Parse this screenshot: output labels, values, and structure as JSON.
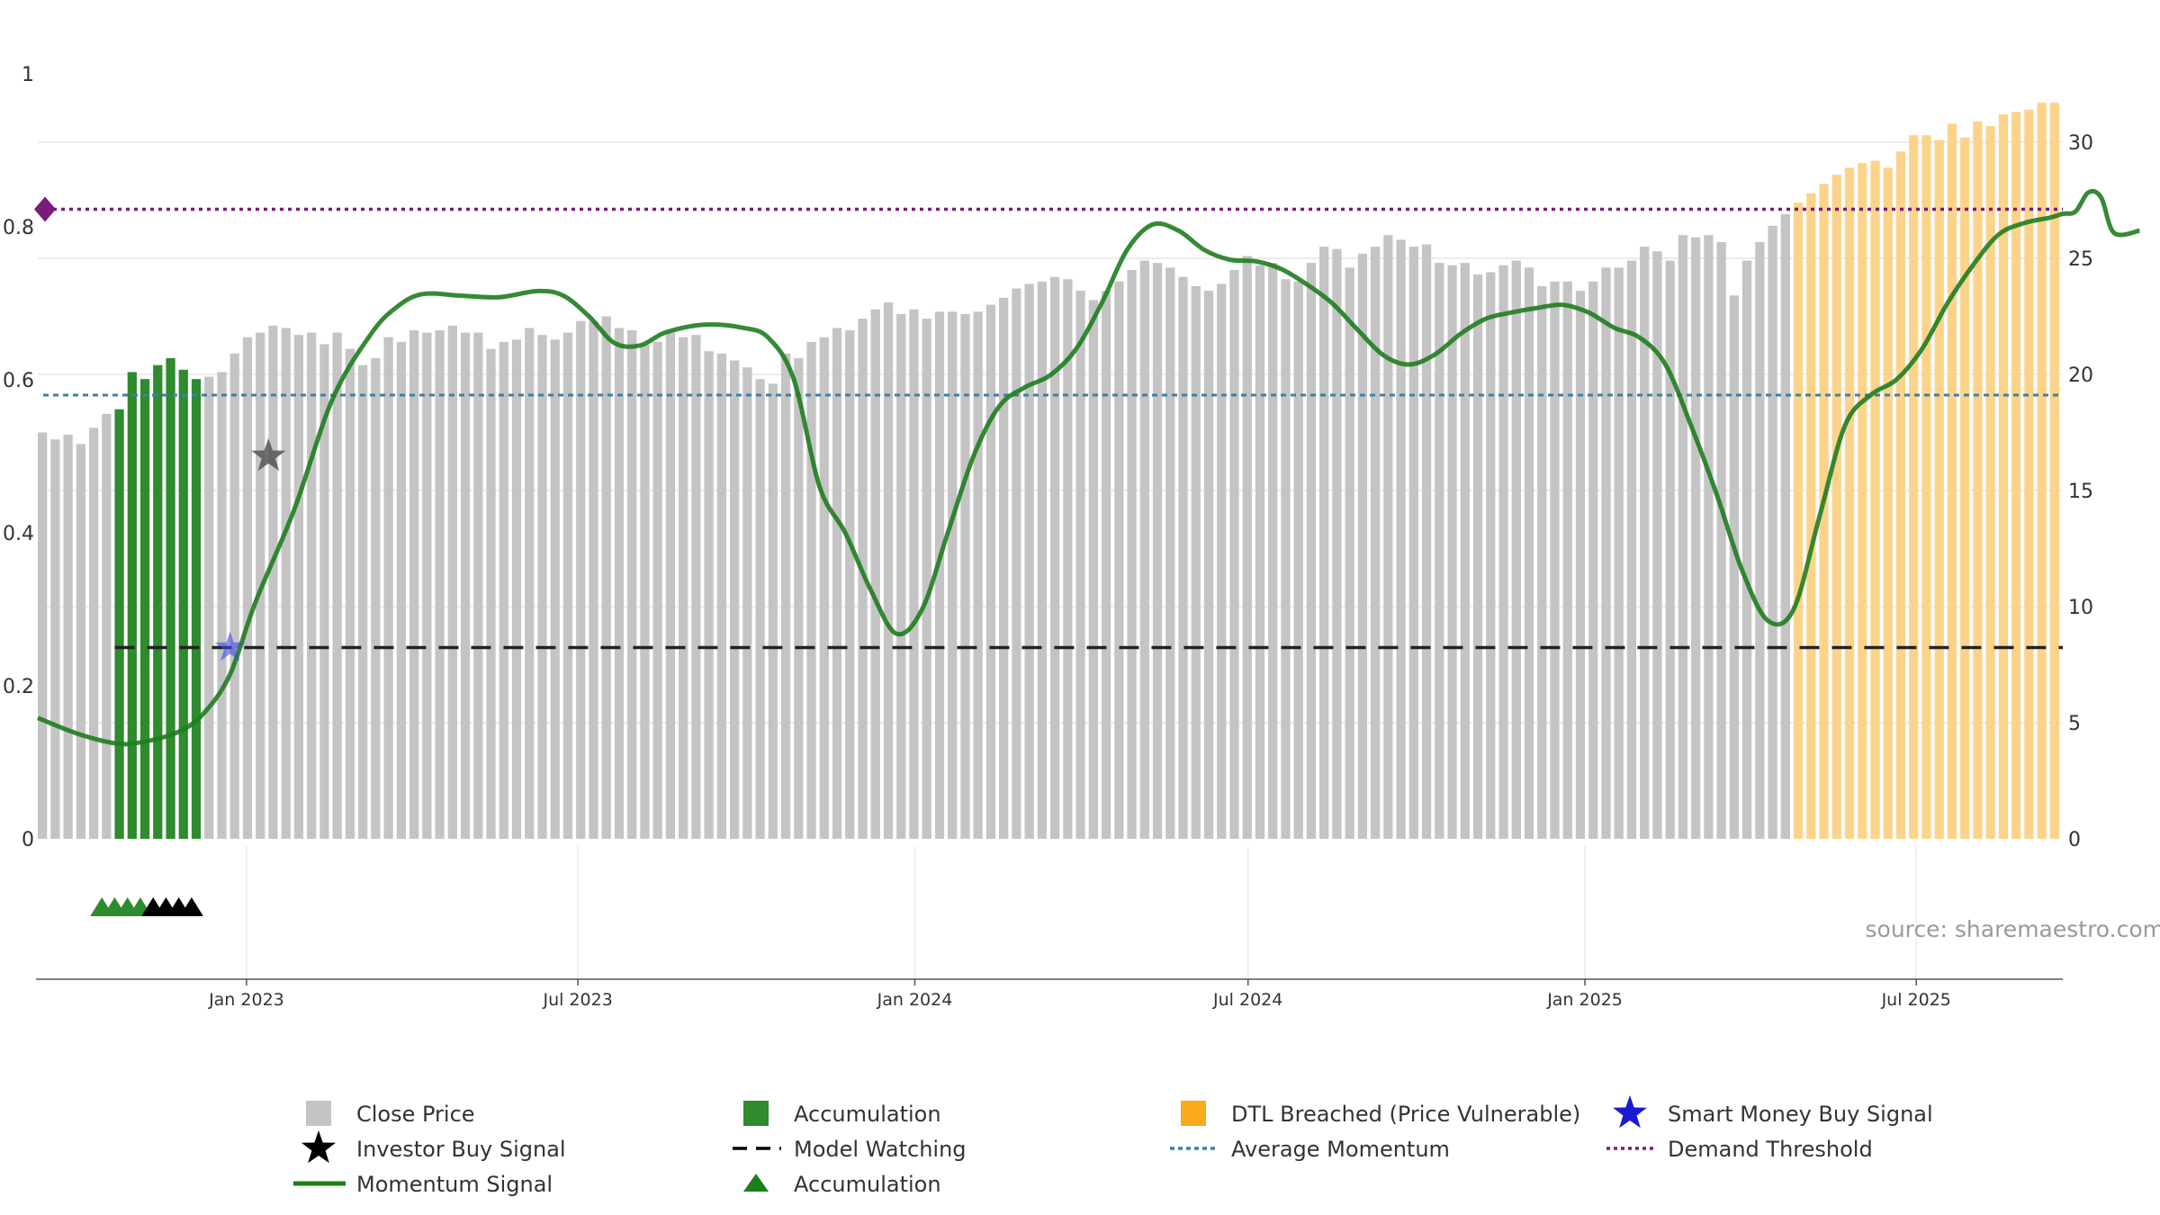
{
  "chart_data": {
    "type": "bar",
    "title": "",
    "colors": {
      "close_price": "#c4c4c4",
      "accumulation": "#2e8b2e",
      "dtl_breached": "#fcd38b",
      "momentum": "#1f7d1f",
      "average_momentum": "#3f7fa6",
      "demand_threshold": "#7a1a7a",
      "model_watching": "#222222",
      "investor_signal": "#555555",
      "smart_money_signal": "#3b4be0"
    },
    "left_axis": {
      "range": [
        0,
        1
      ],
      "ticks": [
        0,
        0.2,
        0.4,
        0.6,
        0.8,
        1
      ],
      "tick_labels": [
        "0",
        "0.2",
        "0.4",
        "0.6",
        "0.8",
        "1"
      ]
    },
    "right_axis": {
      "range": [
        0,
        32.9
      ],
      "ticks": [
        0,
        5,
        10,
        15,
        20,
        25,
        30
      ],
      "tick_labels": [
        "0",
        "5",
        "10",
        "15",
        "20",
        "25",
        "30"
      ]
    },
    "x_axis": {
      "start": "2022-09-09",
      "end": "2025-09-19",
      "ticks": [
        "2023-01-01",
        "2023-07-01",
        "2024-01-01",
        "2024-07-01",
        "2025-01-01",
        "2025-07-01"
      ],
      "tick_labels": [
        "Jan 2023",
        "Jul 2023",
        "Jan 2024",
        "Jul 2024",
        "Jan 2025",
        "Jul 2025"
      ]
    },
    "bars": {
      "week_start": "2022-09-09",
      "interval_days": 7,
      "close_price": [
        17.5,
        17.2,
        17.4,
        17.0,
        17.7,
        18.3,
        18.5,
        20.1,
        19.8,
        20.4,
        20.7,
        20.2,
        19.8,
        19.9,
        20.1,
        20.9,
        21.6,
        21.8,
        22.1,
        22.0,
        21.7,
        21.8,
        21.3,
        21.8,
        21.1,
        20.4,
        20.7,
        21.6,
        21.4,
        21.9,
        21.8,
        21.9,
        22.1,
        21.8,
        21.8,
        21.1,
        21.4,
        21.5,
        22.0,
        21.7,
        21.5,
        21.8,
        22.3,
        22.3,
        22.5,
        22.0,
        21.9,
        21.3,
        21.4,
        21.8,
        21.6,
        21.7,
        21.0,
        20.9,
        20.6,
        20.3,
        19.8,
        19.6,
        20.9,
        20.7,
        21.4,
        21.6,
        22.0,
        21.9,
        22.4,
        22.8,
        23.1,
        22.6,
        22.8,
        22.4,
        22.7,
        22.7,
        22.6,
        22.7,
        23.0,
        23.3,
        23.7,
        23.9,
        24.0,
        24.2,
        24.1,
        23.6,
        23.2,
        23.6,
        24.0,
        24.5,
        24.9,
        24.8,
        24.6,
        24.2,
        23.8,
        23.6,
        23.9,
        24.5,
        25.1,
        24.7,
        24.8,
        24.1,
        24.0,
        24.8,
        25.5,
        25.4,
        24.6,
        25.2,
        25.5,
        26.0,
        25.8,
        25.5,
        25.6,
        24.8,
        24.7,
        24.8,
        24.3,
        24.4,
        24.7,
        24.9,
        24.6,
        23.8,
        24.0,
        24.0,
        23.6,
        24.0,
        24.6,
        24.6,
        24.9,
        25.5,
        25.3,
        24.9,
        26.0,
        25.9,
        26.0,
        25.7,
        23.4,
        24.9,
        25.7,
        26.4,
        26.9
      ],
      "accumulation_indices": [
        6,
        7,
        8,
        9,
        10,
        11,
        12
      ],
      "dtl_start_index": 137,
      "dtl_prices": [
        27.4,
        27.8,
        28.2,
        28.6,
        28.9,
        29.1,
        29.2,
        28.9,
        29.6,
        30.3,
        30.3,
        30.1,
        30.8,
        30.2,
        30.9,
        30.7,
        31.2,
        31.3,
        31.4,
        31.7,
        31.7
      ]
    },
    "series": [
      {
        "name": "Momentum Signal",
        "axis": "left",
        "points": [
          [
            "2022-09-09",
            0.158
          ],
          [
            "2022-09-30",
            0.138
          ],
          [
            "2022-10-21",
            0.125
          ],
          [
            "2022-11-04",
            0.126
          ],
          [
            "2022-11-25",
            0.14
          ],
          [
            "2022-12-09",
            0.165
          ],
          [
            "2022-12-23",
            0.215
          ],
          [
            "2023-01-06",
            0.31
          ],
          [
            "2023-01-27",
            0.43
          ],
          [
            "2023-02-17",
            0.575
          ],
          [
            "2023-03-10",
            0.66
          ],
          [
            "2023-03-24",
            0.695
          ],
          [
            "2023-04-07",
            0.712
          ],
          [
            "2023-04-28",
            0.71
          ],
          [
            "2023-05-19",
            0.708
          ],
          [
            "2023-06-09",
            0.716
          ],
          [
            "2023-06-23",
            0.71
          ],
          [
            "2023-07-07",
            0.683
          ],
          [
            "2023-07-21",
            0.648
          ],
          [
            "2023-08-04",
            0.645
          ],
          [
            "2023-08-18",
            0.662
          ],
          [
            "2023-09-08",
            0.672
          ],
          [
            "2023-09-29",
            0.668
          ],
          [
            "2023-10-13",
            0.655
          ],
          [
            "2023-10-27",
            0.6
          ],
          [
            "2023-11-10",
            0.46
          ],
          [
            "2023-11-24",
            0.4
          ],
          [
            "2023-12-08",
            0.325
          ],
          [
            "2023-12-22",
            0.268
          ],
          [
            "2024-01-05",
            0.3
          ],
          [
            "2024-01-19",
            0.4
          ],
          [
            "2024-02-02",
            0.5
          ],
          [
            "2024-02-16",
            0.565
          ],
          [
            "2024-03-01",
            0.59
          ],
          [
            "2024-03-15",
            0.606
          ],
          [
            "2024-03-29",
            0.64
          ],
          [
            "2024-04-12",
            0.7
          ],
          [
            "2024-04-26",
            0.77
          ],
          [
            "2024-05-10",
            0.803
          ],
          [
            "2024-05-24",
            0.795
          ],
          [
            "2024-06-07",
            0.77
          ],
          [
            "2024-06-21",
            0.757
          ],
          [
            "2024-07-05",
            0.755
          ],
          [
            "2024-07-19",
            0.745
          ],
          [
            "2024-08-02",
            0.725
          ],
          [
            "2024-08-16",
            0.7
          ],
          [
            "2024-08-30",
            0.665
          ],
          [
            "2024-09-13",
            0.632
          ],
          [
            "2024-09-27",
            0.62
          ],
          [
            "2024-10-11",
            0.633
          ],
          [
            "2024-10-25",
            0.66
          ],
          [
            "2024-11-08",
            0.68
          ],
          [
            "2024-11-22",
            0.688
          ],
          [
            "2024-12-06",
            0.694
          ],
          [
            "2024-12-20",
            0.698
          ],
          [
            "2025-01-03",
            0.688
          ],
          [
            "2025-01-17",
            0.668
          ],
          [
            "2025-01-31",
            0.655
          ],
          [
            "2025-02-14",
            0.62
          ],
          [
            "2025-02-28",
            0.54
          ],
          [
            "2025-03-14",
            0.45
          ],
          [
            "2025-03-28",
            0.35
          ],
          [
            "2025-04-11",
            0.285
          ],
          [
            "2025-04-25",
            0.3
          ],
          [
            "2025-05-09",
            0.42
          ],
          [
            "2025-05-23",
            0.54
          ],
          [
            "2025-06-06",
            0.58
          ],
          [
            "2025-06-20",
            0.6
          ],
          [
            "2025-07-04",
            0.64
          ],
          [
            "2025-07-18",
            0.7
          ],
          [
            "2025-08-01",
            0.75
          ],
          [
            "2025-08-15",
            0.79
          ],
          [
            "2025-08-29",
            0.805
          ],
          [
            "2025-09-12",
            0.812
          ],
          [
            "2025-09-19",
            0.817
          ],
          [
            "2025-09-26",
            0.82
          ],
          [
            "2025-10-03",
            0.845
          ],
          [
            "2025-10-10",
            0.838
          ],
          [
            "2025-10-17",
            0.792
          ],
          [
            "2025-10-31",
            0.795
          ]
        ]
      }
    ],
    "reference_lines": {
      "average_momentum": 0.58,
      "demand_threshold": 0.823,
      "model_watching": 0.25,
      "model_watching_start": "2022-10-21"
    },
    "markers": {
      "investor_buy_signal": {
        "date": "2023-01-13",
        "value": 0.5
      },
      "smart_money_buy_signal": {
        "date": "2022-12-23",
        "value": 0.25
      },
      "demand_diamond": {
        "date": "2022-09-09",
        "value": 0.823
      },
      "accumulation_triangles_green": [
        "2022-10-14",
        "2022-10-21",
        "2022-10-28",
        "2022-11-04"
      ],
      "accumulation_triangles_black": [
        "2022-11-11",
        "2022-11-18",
        "2022-11-25",
        "2022-12-02"
      ]
    },
    "legend": [
      [
        "Close Price",
        "Accumulation",
        "DTL Breached (Price Vulnerable)",
        "Smart Money Buy Signal"
      ],
      [
        "Investor Buy Signal",
        "Model Watching",
        "Average Momentum",
        "Demand Threshold"
      ],
      [
        "Momentum Signal",
        "Accumulation"
      ]
    ],
    "legend_position": "bottom-center"
  },
  "source": "source: sharemaestro.com"
}
